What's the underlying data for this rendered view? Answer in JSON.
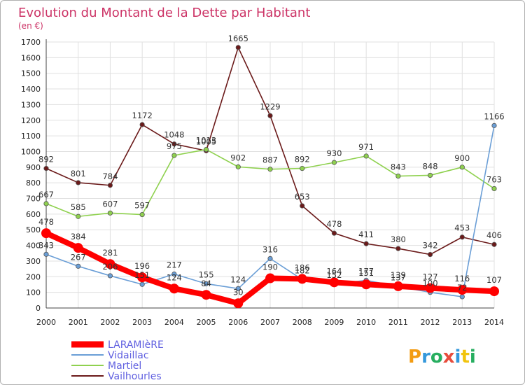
{
  "chart_data": {
    "type": "line",
    "title": "Evolution du Montant de la Dette par Habitant",
    "subtitle": "(en €)",
    "x": [
      2000,
      2001,
      2002,
      2003,
      2004,
      2005,
      2006,
      2007,
      2008,
      2009,
      2010,
      2011,
      2012,
      2013,
      2014
    ],
    "xlabel": "",
    "ylabel": "",
    "ylim": [
      0,
      1700
    ],
    "yticks": [
      0,
      100,
      200,
      300,
      400,
      500,
      600,
      700,
      800,
      900,
      1000,
      1100,
      1200,
      1300,
      1400,
      1500,
      1600,
      1700
    ],
    "grid": true,
    "legend": "bottom-left",
    "series": [
      {
        "name": "Vailhourles",
        "color": "#6b1a1a",
        "values": [
          892,
          801,
          784,
          1172,
          1048,
          1005,
          1665,
          1229,
          653,
          478,
          411,
          380,
          342,
          453,
          406
        ]
      },
      {
        "name": "Martiel",
        "color": "#8fd14f",
        "values": [
          667,
          585,
          607,
          597,
          975,
          1013,
          902,
          887,
          892,
          930,
          971,
          843,
          848,
          900,
          763
        ]
      },
      {
        "name": "Vidaillac",
        "color": "#6a9ed6",
        "values": [
          343,
          267,
          206,
          151,
          217,
          155,
          124,
          316,
          182,
          152,
          177,
          137,
          100,
          72,
          1166
        ]
      },
      {
        "name": "LARAMIèRE",
        "color": "#ff0000",
        "values": [
          478,
          384,
          281,
          196,
          124,
          84,
          30,
          190,
          186,
          164,
          151,
          139,
          127,
          116,
          107
        ]
      }
    ]
  },
  "logo": {
    "text": "Proxiti"
  }
}
